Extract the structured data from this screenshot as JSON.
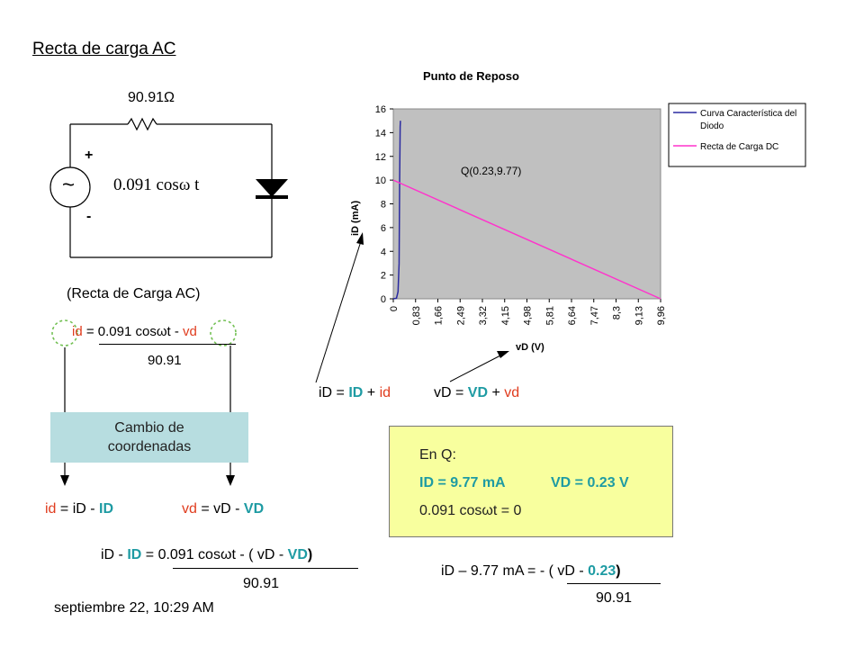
{
  "title": "Recta de carga AC",
  "circuit": {
    "resistor_label": "90.91Ω",
    "source_label": "0.091 cosω t",
    "plus": "+",
    "minus": "-",
    "source_symbol": "~"
  },
  "ac_line": {
    "caption": "(Recta de Carga AC)",
    "eq_id": "id",
    "eq_mid": " = 0.091 cosωt  - ",
    "eq_vd": "vd",
    "eq_den": "90.91"
  },
  "change_box": {
    "line1": "Cambio de",
    "line2": "coordenadas"
  },
  "defs": {
    "id_a": "id",
    "id_b": " = iD -  ",
    "id_c": "ID",
    "vd_a": "vd",
    "vd_b": " = vD  - ",
    "vd_c": "VD"
  },
  "eq_bottom": {
    "a": "iD -  ",
    "b": "ID",
    "c": " = 0.091 cosωt  - ( vD  - ",
    "d": "VD",
    "e": ")",
    "den": "90.91"
  },
  "footer_date": "septiembre 22, 10:29 AM",
  "totals": {
    "iD_a": "iD = ",
    "iD_b": "ID",
    "iD_c": " + ",
    "iD_d": "id",
    "vD_a": "vD = ",
    "vD_b": "VD",
    "vD_c": " + ",
    "vD_d": "vd"
  },
  "q_box": {
    "heading": "En Q:",
    "ID": "ID = 9.77 mA",
    "VD": "VD = 0.23 V",
    "cond": "0.091 cosωt = 0"
  },
  "eq_q": {
    "a": "iD – 9.77 mA = - ( vD  - ",
    "b": "0.23",
    "c": ")",
    "den": "90.91"
  },
  "chart_data": {
    "type": "line",
    "title": "Punto de Reposo",
    "xlabel": "vD (V)",
    "ylabel": "iD (mA)",
    "ylim": [
      0,
      16
    ],
    "y_ticks": [
      "0",
      "2",
      "4",
      "6",
      "8",
      "10",
      "12",
      "14",
      "16"
    ],
    "categories": [
      "0",
      "0,83",
      "1,66",
      "2,49",
      "3,32",
      "4,15",
      "4,98",
      "5,81",
      "6,64",
      "7,47",
      "8,3",
      "9,13",
      "9,96"
    ],
    "grid": false,
    "plot_background": "#c0c0c0",
    "legend_position": "right",
    "series": [
      {
        "name": "Curva Característica del Diodo",
        "color": "#2a2aa0",
        "x": [
          0,
          0.12,
          0.18,
          0.22,
          0.24,
          0.26,
          0.27
        ],
        "y": [
          0,
          0.05,
          0.6,
          3,
          10,
          14.5,
          15
        ]
      },
      {
        "name": "Recta de Carga DC",
        "color": "#ff33cc",
        "x": [
          0,
          10.12
        ],
        "y": [
          10,
          0
        ]
      }
    ],
    "annotation": {
      "text": "Q(0.23,9.77)",
      "x": 0.23,
      "y": 9.77
    }
  },
  "colors": {
    "red": "#e03c1e",
    "teal": "#1e9ba3",
    "change_box": "#b7dde0",
    "q_box": "#f8ff9e"
  }
}
